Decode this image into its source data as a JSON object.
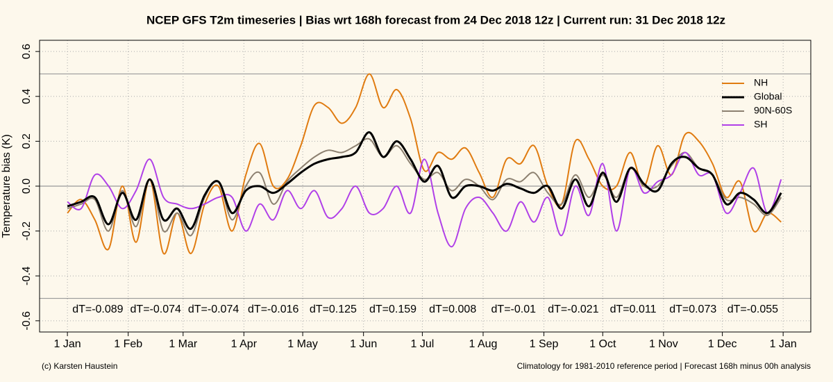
{
  "chart_data": {
    "type": "line",
    "title": "NCEP GFS T2m timeseries | Bias wrt 168h forecast from 24 Dec 2018 12z | Current run: 31 Dec 2018 12z",
    "y_label": "Temperature bias (K)",
    "footer_left": "(c) Karsten Haustein",
    "footer_right": "Climatology for 1981-2010 reference period | Forecast 168h minus 00h analysis",
    "annotations": [
      "dT=-0.089",
      "dT=-0.074",
      "dT=-0.074",
      "dT=-0.016",
      "dT=0.125",
      "dT=0.159",
      "dT=0.008",
      "dT=-0.01",
      "dT=-0.021",
      "dT=0.011",
      "dT=0.073",
      "dT=-0.055"
    ],
    "x": [
      0,
      7,
      14,
      21,
      28,
      35,
      42,
      49,
      56,
      63,
      70,
      77,
      84,
      91,
      98,
      105,
      112,
      119,
      126,
      133,
      140,
      147,
      154,
      161,
      168,
      175,
      182,
      189,
      196,
      203,
      210,
      217,
      224,
      231,
      238,
      245,
      252,
      259,
      266,
      273,
      280,
      287,
      294,
      301,
      308,
      315,
      322,
      329,
      336,
      343,
      350,
      357,
      364
    ],
    "series": [
      {
        "name": "NH",
        "color": "#e07b10",
        "width": 2,
        "values": [
          -0.12,
          -0.06,
          -0.15,
          -0.28,
          0.0,
          -0.25,
          0.03,
          -0.3,
          -0.12,
          -0.3,
          -0.08,
          0.0,
          -0.2,
          0.05,
          0.19,
          0.0,
          0.03,
          0.18,
          0.36,
          0.35,
          0.28,
          0.35,
          0.5,
          0.35,
          0.43,
          0.3,
          0.07,
          0.15,
          0.12,
          0.17,
          0.06,
          -0.05,
          0.12,
          0.1,
          0.18,
          0.0,
          -0.08,
          0.2,
          0.12,
          0.0,
          0.0,
          0.15,
          0.0,
          0.18,
          0.05,
          0.23,
          0.2,
          0.1,
          -0.05,
          0.02,
          -0.2,
          -0.12,
          -0.16
        ]
      },
      {
        "name": "Global",
        "color": "#000000",
        "width": 3,
        "values": [
          -0.09,
          -0.07,
          -0.05,
          -0.17,
          -0.03,
          -0.15,
          0.03,
          -0.15,
          -0.1,
          -0.19,
          -0.04,
          0.02,
          -0.12,
          -0.02,
          0.0,
          -0.03,
          0.01,
          0.06,
          0.1,
          0.12,
          0.13,
          0.15,
          0.24,
          0.13,
          0.2,
          0.12,
          0.02,
          0.09,
          -0.05,
          0.0,
          0.0,
          -0.02,
          0.01,
          -0.01,
          -0.03,
          0.0,
          -0.1,
          0.03,
          -0.09,
          0.06,
          -0.07,
          0.08,
          0.01,
          -0.02,
          0.1,
          0.13,
          0.08,
          0.05,
          -0.08,
          -0.03,
          -0.06,
          -0.12,
          -0.03
        ]
      },
      {
        "name": "90N-60S",
        "color": "#8c8070",
        "width": 2,
        "values": [
          -0.1,
          -0.08,
          -0.06,
          -0.2,
          -0.02,
          -0.18,
          0.03,
          -0.2,
          -0.12,
          -0.22,
          -0.05,
          0.02,
          -0.15,
          0.0,
          0.06,
          -0.08,
          0.02,
          0.08,
          0.13,
          0.16,
          0.15,
          0.18,
          0.21,
          0.13,
          0.18,
          0.1,
          0.03,
          0.06,
          -0.02,
          0.03,
          0.0,
          -0.06,
          0.03,
          0.02,
          0.06,
          -0.03,
          -0.08,
          0.05,
          -0.05,
          0.05,
          -0.05,
          0.08,
          0.0,
          0.0,
          0.09,
          0.15,
          0.08,
          0.05,
          -0.06,
          -0.05,
          -0.08,
          -0.13,
          -0.05
        ]
      },
      {
        "name": "SH",
        "color": "#b040e8",
        "width": 2,
        "values": [
          -0.07,
          -0.1,
          0.05,
          0.0,
          -0.1,
          -0.02,
          0.12,
          -0.05,
          -0.08,
          -0.1,
          -0.08,
          -0.05,
          -0.05,
          -0.2,
          -0.08,
          -0.15,
          -0.02,
          -0.1,
          -0.02,
          -0.14,
          -0.1,
          0.0,
          -0.12,
          -0.1,
          0.0,
          -0.12,
          0.12,
          -0.12,
          -0.27,
          -0.1,
          -0.05,
          -0.12,
          -0.2,
          -0.07,
          -0.16,
          -0.05,
          -0.22,
          0.0,
          -0.13,
          0.1,
          -0.2,
          0.08,
          -0.03,
          0.02,
          0.05,
          0.15,
          0.05,
          0.05,
          -0.12,
          -0.03,
          0.08,
          -0.12,
          0.03
        ]
      }
    ],
    "xlim": [
      -14.2,
      379.1
    ],
    "xticks": [
      {
        "value": 0,
        "label": "1 Jan"
      },
      {
        "value": 31,
        "label": "1 Feb"
      },
      {
        "value": 59,
        "label": "1 Mar"
      },
      {
        "value": 90,
        "label": "1 Apr"
      },
      {
        "value": 120,
        "label": "1 May"
      },
      {
        "value": 151,
        "label": "1 Jun"
      },
      {
        "value": 181,
        "label": "1 Jul"
      },
      {
        "value": 212,
        "label": "1 Aug"
      },
      {
        "value": 243,
        "label": "1 Sep"
      },
      {
        "value": 273,
        "label": "1 Oct"
      },
      {
        "value": 304,
        "label": "1 Nov"
      },
      {
        "value": 334,
        "label": "1 Dec"
      },
      {
        "value": 365,
        "label": "1 Jan"
      }
    ],
    "ylim": [
      -0.65,
      0.65
    ],
    "yticks": [
      -0.6,
      -0.4,
      -0.2,
      {
        "value": 0,
        "label": "0.0"
      },
      0.2,
      0.4,
      0.6
    ],
    "hlines": [
      -0.5,
      0,
      0.5
    ],
    "grid": true,
    "legend": "upper right"
  }
}
